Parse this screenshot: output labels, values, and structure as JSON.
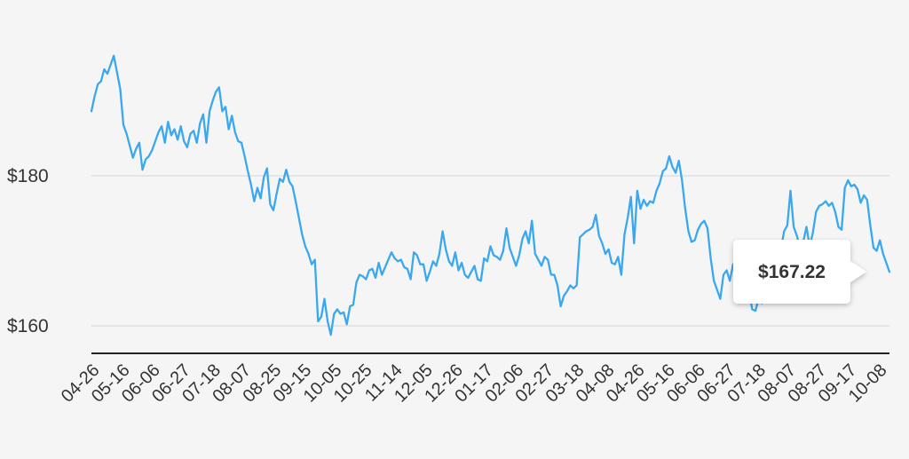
{
  "chart_data": {
    "type": "line",
    "x_tick_labels": [
      "04-26",
      "05-16",
      "06-06",
      "06-27",
      "07-18",
      "08-07",
      "08-25",
      "09-15",
      "10-05",
      "10-25",
      "11-14",
      "12-05",
      "12-26",
      "01-17",
      "02-06",
      "02-27",
      "03-18",
      "04-08",
      "04-26",
      "05-16",
      "06-06",
      "06-27",
      "07-18",
      "08-07",
      "08-27",
      "09-17",
      "10-08"
    ],
    "y_ticks": [
      {
        "value": 160,
        "label": "$160"
      },
      {
        "value": 180,
        "label": "$180"
      }
    ],
    "ylim": [
      156,
      198
    ],
    "grid": true,
    "line_color": "#3aa8f0",
    "baseline_color": "#222222",
    "values": [
      188.6,
      190.6,
      192.2,
      192.6,
      194.2,
      193.6,
      194.8,
      196.0,
      193.8,
      191.6,
      186.8,
      185.6,
      184.0,
      182.4,
      183.6,
      184.4,
      180.8,
      182.2,
      182.6,
      183.4,
      184.6,
      185.8,
      186.6,
      184.4,
      187.2,
      185.4,
      186.2,
      184.8,
      186.6,
      184.6,
      183.8,
      185.6,
      186.0,
      184.4,
      187.0,
      188.2,
      184.4,
      188.6,
      190.0,
      191.2,
      191.8,
      188.6,
      189.2,
      186.2,
      188.0,
      185.8,
      184.6,
      184.4,
      182.6,
      180.6,
      178.8,
      176.6,
      178.4,
      177.0,
      179.8,
      181.0,
      176.2,
      175.4,
      177.6,
      179.6,
      179.2,
      180.8,
      179.2,
      178.6,
      176.6,
      174.4,
      172.2,
      170.6,
      169.6,
      168.2,
      168.8,
      160.6,
      161.2,
      163.6,
      160.6,
      158.8,
      161.6,
      162.2,
      161.6,
      161.8,
      160.2,
      162.6,
      162.8,
      165.8,
      166.8,
      166.6,
      166.2,
      167.4,
      167.6,
      166.4,
      168.4,
      166.8,
      167.8,
      168.8,
      169.8,
      169.0,
      168.6,
      168.8,
      167.8,
      167.6,
      166.2,
      169.8,
      169.4,
      168.2,
      168.2,
      166.0,
      167.2,
      168.6,
      168.0,
      169.6,
      172.6,
      170.2,
      168.6,
      168.0,
      169.8,
      167.4,
      168.4,
      166.8,
      166.4,
      167.2,
      168.0,
      166.2,
      166.0,
      169.0,
      168.6,
      170.6,
      169.4,
      169.2,
      168.8,
      170.0,
      173.0,
      170.4,
      169.2,
      168.0,
      169.4,
      171.6,
      172.6,
      171.0,
      174.0,
      169.6,
      168.8,
      168.0,
      169.2,
      168.8,
      166.8,
      166.8,
      165.4,
      162.6,
      164.0,
      164.6,
      165.4,
      165.0,
      165.4,
      171.8,
      172.2,
      172.6,
      172.8,
      173.2,
      174.8,
      172.0,
      171.0,
      169.6,
      170.2,
      168.4,
      168.2,
      169.2,
      166.8,
      172.2,
      174.4,
      177.2,
      171.0,
      178.0,
      175.6,
      176.8,
      176.0,
      176.6,
      176.4,
      178.0,
      179.0,
      180.6,
      181.0,
      182.6,
      181.2,
      180.4,
      182.0,
      179.4,
      175.6,
      172.6,
      171.2,
      171.4,
      172.8,
      173.6,
      174.0,
      173.0,
      169.0,
      166.0,
      164.8,
      163.6,
      166.8,
      167.4,
      166.0,
      168.2,
      167.2,
      164.4,
      166.4,
      165.6,
      164.6,
      162.2,
      162.0,
      163.6,
      163.0,
      164.2,
      165.0,
      166.4,
      167.6,
      169.4,
      170.2,
      172.6,
      173.4,
      178.0,
      173.2,
      172.0,
      170.4,
      171.2,
      173.2,
      170.6,
      172.4,
      175.2,
      176.0,
      176.2,
      176.6,
      176.0,
      176.4,
      175.2,
      173.2,
      172.8,
      178.4,
      179.4,
      178.6,
      178.8,
      178.2,
      176.4,
      177.4,
      176.8,
      173.4,
      170.4,
      170.0,
      171.4,
      169.6,
      168.4,
      167.2
    ]
  },
  "tooltip": {
    "label": "$167.22"
  }
}
